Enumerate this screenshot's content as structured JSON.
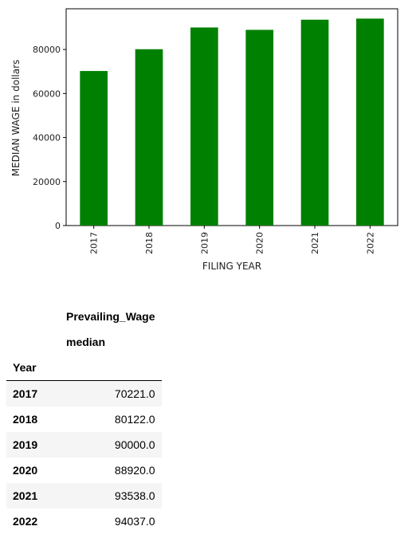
{
  "chart_data": {
    "type": "bar",
    "categories": [
      "2017",
      "2018",
      "2019",
      "2020",
      "2021",
      "2022"
    ],
    "values": [
      70221,
      80122,
      90000,
      88920,
      93538,
      94037
    ],
    "xlabel": "FILING YEAR",
    "ylabel": "MEDIAN WAGE in dollars",
    "ylim": [
      0,
      98500
    ],
    "yticks": [
      0,
      20000,
      40000,
      60000,
      80000
    ],
    "bar_color": "#008000",
    "grid": false,
    "legend": "none"
  },
  "table": {
    "column_header": "Prevailing_Wage",
    "sub_header": "median",
    "index_name": "Year",
    "rows": [
      {
        "year": "2017",
        "value": "70221.0"
      },
      {
        "year": "2018",
        "value": "80122.0"
      },
      {
        "year": "2019",
        "value": "90000.0"
      },
      {
        "year": "2020",
        "value": "88920.0"
      },
      {
        "year": "2021",
        "value": "93538.0"
      },
      {
        "year": "2022",
        "value": "94037.0"
      }
    ]
  }
}
